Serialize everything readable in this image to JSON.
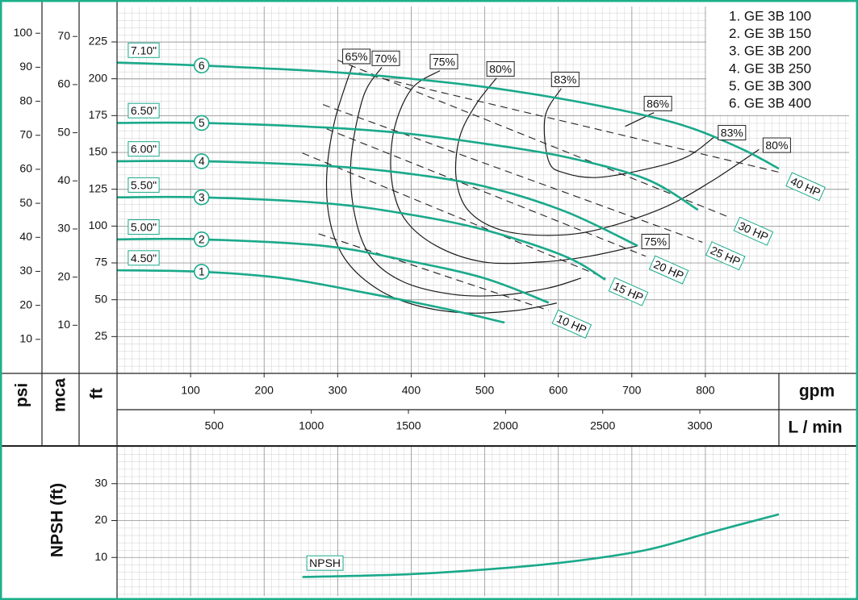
{
  "chart_data": {
    "type": "line",
    "x_label": "gpm",
    "x2_label": "L / min",
    "y_label": "ft",
    "y2_label": "psi",
    "y3_label": "mca",
    "xlim": [
      0,
      900
    ],
    "xticks": [
      100,
      200,
      300,
      400,
      500,
      600,
      700,
      800
    ],
    "x2lim": [
      0,
      3407
    ],
    "x2ticks": [
      500,
      1000,
      1500,
      2000,
      2500,
      3000
    ],
    "ylim": [
      0,
      248
    ],
    "yticks": [
      25,
      50,
      75,
      100,
      125,
      150,
      175,
      200,
      225
    ],
    "y2lim": [
      0,
      107.4
    ],
    "y2ticks": [
      10,
      20,
      30,
      40,
      50,
      60,
      70,
      80,
      90,
      100
    ],
    "y3lim": [
      0,
      75.9
    ],
    "y3ticks": [
      10,
      20,
      30,
      40,
      50,
      60,
      70
    ],
    "grid": true,
    "legend": [
      "1. GE 3B 100",
      "2. GE 3B 150",
      "3. GE 3B 200",
      "4. GE 3B 250",
      "5. GE 3B 300",
      "6. GE 3B 400"
    ],
    "series": [
      {
        "name": "1",
        "diameter": "4.50\"",
        "color": "#1aa98b",
        "x": [
          0,
          115,
          225,
          335,
          445,
          527
        ],
        "values": [
          70,
          69,
          64.7,
          55,
          44,
          34.5
        ]
      },
      {
        "name": "2",
        "diameter": "5.00\"",
        "color": "#1aa98b",
        "x": [
          0,
          115,
          280,
          390,
          499,
          587
        ],
        "values": [
          91,
          91,
          86.6,
          77,
          64.7,
          48
        ]
      },
      {
        "name": "3",
        "diameter": "5.50\"",
        "color": "#1aa98b",
        "x": [
          0,
          115,
          280,
          390,
          499,
          609,
          664
        ],
        "values": [
          119.5,
          119.5,
          115.6,
          108.5,
          97.5,
          79.5,
          63.6
        ]
      },
      {
        "name": "4",
        "diameter": "6.00\"",
        "color": "#1aa98b",
        "x": [
          0,
          115,
          280,
          390,
          499,
          609,
          708
        ],
        "values": [
          144,
          144,
          141,
          136,
          127,
          110,
          86.6
        ]
      },
      {
        "name": "5",
        "diameter": "6.50\"",
        "color": "#1aa98b",
        "x": [
          0,
          115,
          280,
          390,
          499,
          609,
          719,
          790
        ],
        "values": [
          170,
          170,
          167,
          163,
          156,
          147,
          132,
          111
        ]
      },
      {
        "name": "6",
        "diameter": "7.10\"",
        "color": "#1aa98b",
        "x": [
          0,
          115,
          280,
          390,
          499,
          609,
          719,
          784,
          851,
          900
        ],
        "values": [
          211,
          209,
          205,
          200.5,
          194.5,
          186,
          175,
          166,
          152,
          139
        ]
      }
    ],
    "efficiency_color": "#1a1a1a",
    "efficiency_curves": [
      {
        "labels": [
          "65%"
        ],
        "x": [
          320,
          296,
          285,
          291,
          313,
          357,
          412,
          477,
          543,
          598
        ],
        "values": [
          209,
          171.5,
          133,
          100,
          75.6,
          56.4,
          45.5,
          41,
          42.7,
          47.7
        ]
      },
      {
        "labels": [
          "70%"
        ],
        "x": [
          360,
          335,
          318,
          324,
          346,
          390,
          456,
          521,
          587,
          631
        ],
        "values": [
          207.7,
          188,
          144,
          105.7,
          78.4,
          62,
          53.7,
          53,
          58,
          64.7
        ]
      },
      {
        "labels": [
          "75%",
          "75%"
        ],
        "x": [
          439,
          401,
          377,
          373,
          390,
          434,
          499,
          576,
          642,
          708
        ],
        "values": [
          205.5,
          193.4,
          166,
          133,
          105.7,
          86.6,
          75.6,
          75.6,
          79.5,
          86.6
        ]
      },
      {
        "labels": [
          "80%",
          "80%"
        ],
        "x": [
          516,
          488,
          466,
          461,
          477,
          521,
          587,
          653,
          741,
          807,
          873
        ],
        "values": [
          200.5,
          182.5,
          160.5,
          133,
          111,
          97.5,
          93.7,
          97.5,
          112,
          130,
          152
        ]
      },
      {
        "labels": [
          "83%",
          "83%"
        ],
        "x": [
          604,
          582,
          587,
          609,
          653,
          719,
          774,
          812
        ],
        "values": [
          193.4,
          174,
          144,
          136,
          133,
          138.6,
          146.8,
          160.5
        ]
      },
      {
        "labels": [
          "86%"
        ],
        "x": [
          730,
          691
        ],
        "values": [
          177,
          167.7
        ]
      }
    ],
    "power_lines": [
      {
        "label": "40 HP",
        "x": [
          329,
          905
        ],
        "values": [
          204,
          136
        ]
      },
      {
        "label": "30 HP",
        "x": [
          300,
          834
        ],
        "values": [
          212.6,
          105.7
        ]
      },
      {
        "label": "25 HP",
        "x": [
          280,
          796
        ],
        "values": [
          182.5,
          89
        ]
      },
      {
        "label": "20 HP",
        "x": [
          285,
          719
        ],
        "values": [
          166,
          79.5
        ]
      },
      {
        "label": "15 HP",
        "x": [
          252,
          664
        ],
        "values": [
          149.6,
          64.7
        ]
      },
      {
        "label": "10 HP",
        "x": [
          274,
          587
        ],
        "values": [
          94.8,
          42.7
        ]
      }
    ],
    "npsh": {
      "y_label": "NPSH (ft)",
      "label": "NPSH",
      "color": "#1aa98b",
      "ylim": [
        0,
        40
      ],
      "yticks": [
        10,
        20,
        30
      ],
      "x": [
        252,
        390,
        499,
        609,
        719,
        807,
        900
      ],
      "values": [
        4.7,
        5.4,
        6.7,
        8.7,
        12,
        16.8,
        21.7
      ]
    }
  }
}
